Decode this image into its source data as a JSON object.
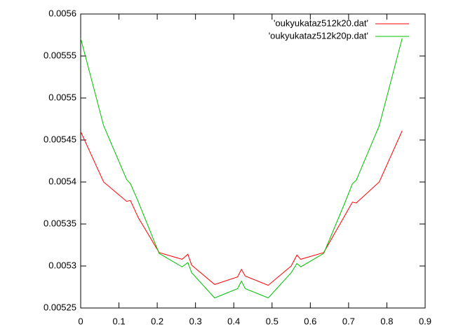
{
  "chart_data": {
    "type": "line",
    "x": [
      0,
      0.06,
      0.12,
      0.13,
      0.15,
      0.205,
      0.265,
      0.28,
      0.29,
      0.35,
      0.41,
      0.42,
      0.43,
      0.49,
      0.55,
      0.565,
      0.575,
      0.635,
      0.69,
      0.71,
      0.72,
      0.78,
      0.84
    ],
    "series": [
      {
        "name": "'oukyukataz512k20.dat'",
        "color": "#ff0000",
        "values": [
          0.00546,
          0.0054,
          0.005377,
          0.005378,
          0.005358,
          0.005316,
          0.005308,
          0.005314,
          0.005301,
          0.005278,
          0.005287,
          0.005296,
          0.005288,
          0.005277,
          0.0053,
          0.005313,
          0.005308,
          0.005316,
          0.00536,
          0.005376,
          0.005375,
          0.0054,
          0.005461
        ]
      },
      {
        "name": "'oukyukataz512k20p.dat'",
        "color": "#00c000",
        "values": [
          0.005571,
          0.005467,
          0.005403,
          0.005398,
          0.005377,
          0.005315,
          0.005299,
          0.005304,
          0.005292,
          0.005262,
          0.005273,
          0.005282,
          0.005273,
          0.005262,
          0.005292,
          0.005303,
          0.005299,
          0.005315,
          0.005375,
          0.005398,
          0.005402,
          0.005467,
          0.005571
        ]
      }
    ],
    "xlim": [
      0,
      0.9
    ],
    "xticks": [
      0,
      0.1,
      0.2,
      0.3,
      0.4,
      0.5,
      0.6,
      0.7,
      0.8,
      0.9
    ],
    "ylim": [
      0.00525,
      0.0056
    ],
    "yticks": [
      0.00525,
      0.0053,
      0.00535,
      0.0054,
      0.00545,
      0.0055,
      0.00555,
      0.0056
    ],
    "legend": "top-right",
    "grid": false
  }
}
